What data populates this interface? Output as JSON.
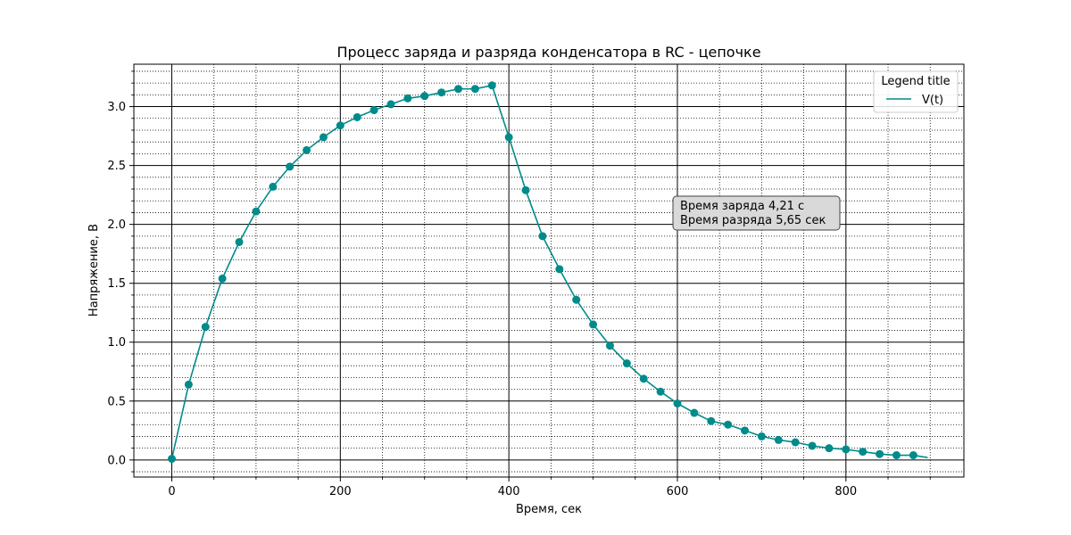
{
  "chart_data": {
    "type": "line",
    "title": "Процесс заряда и разряда конденсатора в RC - цепочке",
    "xlabel": "Время, сек",
    "ylabel": "Напряжение, В",
    "xlim": [
      -45,
      940
    ],
    "ylim": [
      -0.145,
      3.36
    ],
    "x_ticks": [
      0,
      200,
      400,
      600,
      800
    ],
    "x_tick_labels": [
      "0",
      "200",
      "400",
      "600",
      "800"
    ],
    "y_ticks": [
      0.0,
      0.5,
      1.0,
      1.5,
      2.0,
      2.5,
      3.0
    ],
    "y_tick_labels": [
      "0.0",
      "0.5",
      "1.0",
      "1.5",
      "2.0",
      "2.5",
      "3.0"
    ],
    "grid": {
      "major": true,
      "minor": true
    },
    "legend": {
      "title": "Legend title",
      "placement": "top-right",
      "entries": [
        "V(t)"
      ]
    },
    "annotation": {
      "lines": [
        "Время заряда 4,21 с",
        "Время разряда 5,65 сек"
      ],
      "x": 600,
      "y": 2.1
    },
    "series": [
      {
        "name": "V(t)",
        "color": "#008b8b",
        "x": [
          0,
          20,
          40,
          60,
          80,
          100,
          120,
          140,
          160,
          180,
          200,
          220,
          240,
          260,
          280,
          300,
          320,
          340,
          360,
          380,
          400,
          420,
          440,
          460,
          480,
          500,
          520,
          540,
          560,
          580,
          600,
          620,
          640,
          660,
          680,
          700,
          720,
          740,
          760,
          780,
          800,
          820,
          840,
          860,
          880,
          897
        ],
        "y": [
          0.01,
          0.64,
          1.13,
          1.54,
          1.85,
          2.11,
          2.32,
          2.49,
          2.63,
          2.74,
          2.84,
          2.91,
          2.97,
          3.02,
          3.07,
          3.09,
          3.12,
          3.15,
          3.15,
          3.18,
          2.74,
          2.29,
          1.9,
          1.62,
          1.36,
          1.15,
          0.97,
          0.82,
          0.69,
          0.58,
          0.48,
          0.4,
          0.33,
          0.3,
          0.25,
          0.2,
          0.17,
          0.15,
          0.12,
          0.1,
          0.09,
          0.07,
          0.05,
          0.04,
          0.04,
          0.02
        ],
        "markers_x": [
          0,
          20,
          40,
          60,
          80,
          100,
          120,
          140,
          160,
          180,
          200,
          220,
          240,
          260,
          280,
          300,
          320,
          340,
          360,
          380,
          400,
          420,
          440,
          460,
          480,
          500,
          520,
          540,
          560,
          580,
          600,
          620,
          640,
          660,
          680,
          700,
          720,
          740,
          760,
          780,
          800,
          820,
          840,
          860,
          880
        ]
      }
    ]
  }
}
